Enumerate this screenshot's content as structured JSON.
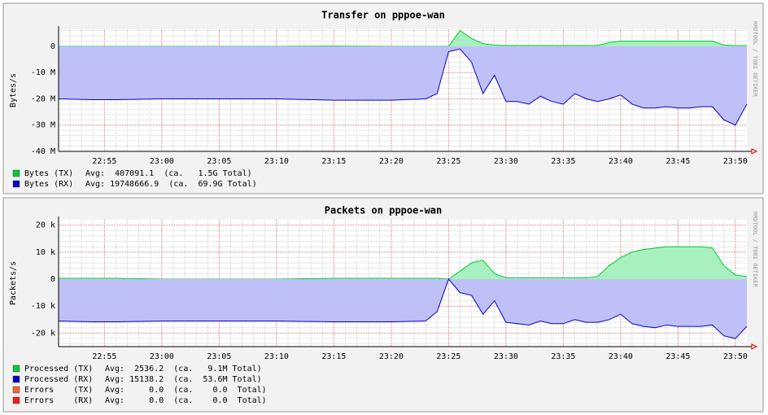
{
  "chart_data": [
    {
      "type": "area",
      "title": "Transfer on pppoe-wan",
      "ylabel": "Bytes/s",
      "watermark": "RRDTOOL / TOBI OETIKER",
      "x": [
        "22:51",
        "22:54",
        "22:56",
        "23:00",
        "23:05",
        "23:10",
        "23:15",
        "23:20",
        "23:23",
        "23:24",
        "23:25",
        "23:26",
        "23:27",
        "23:28",
        "23:29",
        "23:30",
        "23:31",
        "23:32",
        "23:33",
        "23:34",
        "23:35",
        "23:36",
        "23:37",
        "23:38",
        "23:39",
        "23:40",
        "23:41",
        "23:42",
        "23:43",
        "23:44",
        "23:45",
        "23:46",
        "23:47",
        "23:48",
        "23:49",
        "23:50",
        "23:51"
      ],
      "xlim": [
        "22:51",
        "23:51"
      ],
      "xticks": [
        "22:55",
        "23:00",
        "23:05",
        "23:10",
        "23:15",
        "23:20",
        "23:25",
        "23:30",
        "23:35",
        "23:40",
        "23:45",
        "23:50"
      ],
      "ylim": [
        -40000000,
        6500000
      ],
      "yticks": [
        0,
        {
          "value": -10000000,
          "label": "-10 M"
        },
        {
          "value": -20000000,
          "label": "-20 M"
        },
        {
          "value": -30000000,
          "label": "-30 M"
        },
        {
          "value": -40000000,
          "label": "-40 M"
        }
      ],
      "grid": true,
      "series": [
        {
          "name": "Bytes (TX)",
          "summary": "Avg:  407091.1  (ca.   1.5G Total)",
          "color": "#00cc33",
          "fill": "#a8f0c0",
          "values": [
            0,
            0,
            0,
            0,
            0,
            0,
            100000,
            0,
            0,
            0,
            0,
            6000000,
            3000000,
            1000000,
            500000,
            300000,
            300000,
            300000,
            300000,
            300000,
            300000,
            300000,
            300000,
            300000,
            1500000,
            2000000,
            2000000,
            2000000,
            2000000,
            2000000,
            2000000,
            2000000,
            2000000,
            2000000,
            500000,
            300000,
            300000
          ]
        },
        {
          "name": "Bytes (RX)",
          "summary": "Avg: 19748666.9  (ca.  69.9G Total)",
          "color": "#0000cc",
          "fill": "#c0c0f8",
          "values": [
            -20000000,
            -20300000,
            -20300000,
            -20000000,
            -20000000,
            -20000000,
            -20500000,
            -20500000,
            -20000000,
            -18000000,
            -2000000,
            -1000000,
            -6000000,
            -18000000,
            -11000000,
            -21000000,
            -21000000,
            -22000000,
            -19000000,
            -21000000,
            -22000000,
            -18000000,
            -20000000,
            -21000000,
            -20000000,
            -18500000,
            -22000000,
            -23500000,
            -23500000,
            -23000000,
            -23500000,
            -23500000,
            -23000000,
            -23000000,
            -28000000,
            -30000000,
            -22000000
          ]
        }
      ]
    },
    {
      "type": "area",
      "title": "Packets on pppoe-wan",
      "ylabel": "Packets/s",
      "watermark": "RRDTOOL / TOBI OETIKER",
      "x": [
        "22:51",
        "22:54",
        "22:56",
        "23:00",
        "23:05",
        "23:10",
        "23:15",
        "23:20",
        "23:23",
        "23:24",
        "23:25",
        "23:26",
        "23:27",
        "23:28",
        "23:29",
        "23:30",
        "23:31",
        "23:32",
        "23:33",
        "23:34",
        "23:35",
        "23:36",
        "23:37",
        "23:38",
        "23:39",
        "23:40",
        "23:41",
        "23:42",
        "23:43",
        "23:44",
        "23:45",
        "23:46",
        "23:47",
        "23:48",
        "23:49",
        "23:50",
        "23:51"
      ],
      "xlim": [
        "22:51",
        "23:51"
      ],
      "xticks": [
        "22:55",
        "23:00",
        "23:05",
        "23:10",
        "23:15",
        "23:20",
        "23:25",
        "23:30",
        "23:35",
        "23:40",
        "23:45",
        "23:50"
      ],
      "ylim": [
        -25000,
        22000
      ],
      "yticks": [
        {
          "value": 20000,
          "label": "20 k"
        },
        {
          "value": 10000,
          "label": "10 k"
        },
        0,
        {
          "value": -10000,
          "label": "-10 k"
        },
        {
          "value": -20000,
          "label": "-20 k"
        }
      ],
      "grid": true,
      "series": [
        {
          "name": "Errors    (TX)",
          "summary": "Avg:     0.0  (ca.    0.0  Total)",
          "color": "#ff6030",
          "fill": "#ff6030",
          "values": [
            0,
            0,
            0,
            0,
            0,
            0,
            0,
            0,
            0,
            0,
            0,
            0,
            0,
            0,
            0,
            0,
            0,
            0,
            0,
            0,
            0,
            0,
            0,
            0,
            0,
            0,
            0,
            0,
            0,
            0,
            0,
            0,
            0,
            0,
            0,
            0,
            0
          ]
        },
        {
          "name": "Errors    (RX)",
          "summary": "Avg:     0.0  (ca.    0.0  Total)",
          "color": "#ee2020",
          "fill": "#ee2020",
          "values": [
            0,
            0,
            0,
            0,
            0,
            0,
            0,
            0,
            0,
            0,
            0,
            0,
            0,
            0,
            0,
            0,
            0,
            0,
            0,
            0,
            0,
            0,
            0,
            0,
            0,
            0,
            0,
            0,
            0,
            0,
            0,
            0,
            0,
            0,
            0,
            0,
            0
          ]
        },
        {
          "name": "Processed (TX)",
          "summary": "Avg:  2536.2  (ca.   9.1M Total)",
          "color": "#00cc33",
          "fill": "#a8f0c0",
          "values": [
            300,
            300,
            300,
            0,
            0,
            0,
            300,
            300,
            300,
            300,
            0,
            3000,
            6000,
            7000,
            2000,
            500,
            500,
            500,
            500,
            500,
            500,
            500,
            500,
            1000,
            5000,
            8000,
            10000,
            11000,
            11500,
            12000,
            12000,
            12000,
            12000,
            11500,
            5000,
            1500,
            1000
          ]
        },
        {
          "name": "Processed (RX)",
          "summary": "Avg: 15138.2  (ca.  53.6M Total)",
          "color": "#0000cc",
          "fill": "#c0c0f8",
          "values": [
            -15500,
            -15800,
            -15800,
            -15500,
            -15500,
            -15500,
            -15800,
            -15800,
            -15500,
            -12000,
            0,
            -5000,
            -6000,
            -13000,
            -8000,
            -16000,
            -16500,
            -17000,
            -15500,
            -16500,
            -16500,
            -15000,
            -16000,
            -16000,
            -15000,
            -13000,
            -16500,
            -17500,
            -18000,
            -17000,
            -17500,
            -17500,
            -17500,
            -17000,
            -21000,
            -22000,
            -17500
          ]
        }
      ]
    }
  ]
}
